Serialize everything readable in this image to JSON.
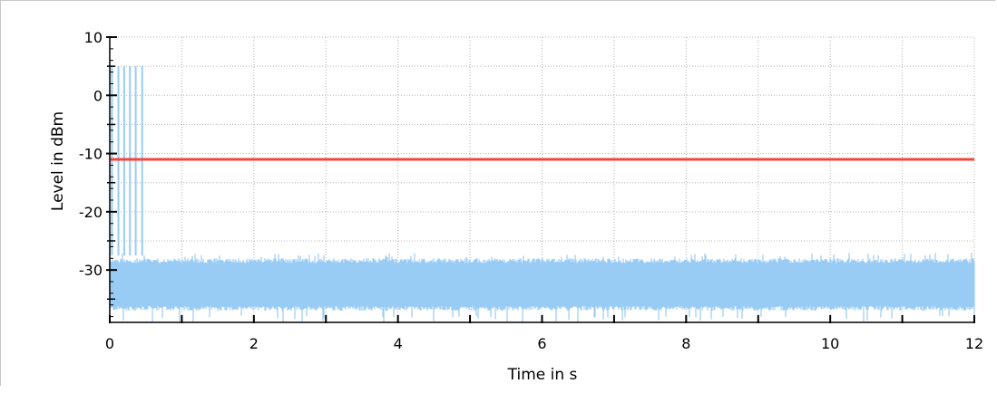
{
  "chart_data": {
    "type": "line",
    "title": "",
    "xlabel": "Time in s",
    "ylabel": "Level in dBm",
    "xlim": [
      0,
      12
    ],
    "ylim": [
      -39,
      10
    ],
    "x_ticks": [
      0,
      2,
      4,
      6,
      8,
      10,
      12
    ],
    "x_minor_ticks": [
      1,
      3,
      5,
      7,
      9,
      11
    ],
    "y_ticks": [
      10,
      0,
      -10,
      -20,
      -30
    ],
    "x_tick_labels": [
      "0",
      "2",
      "4",
      "6",
      "8",
      "10",
      "12"
    ],
    "y_tick_labels": [
      "10",
      "0",
      "-10",
      "-20",
      "-30"
    ],
    "grid": true,
    "series": [
      {
        "kind": "noise-band",
        "color": "#99ccf5",
        "x_range": [
          0,
          12
        ],
        "band_min": -37,
        "band_max": -28,
        "spike_min": -39,
        "spike_max": -27
      },
      {
        "kind": "pulses",
        "color": "#99ccf5",
        "x": [
          0.03,
          0.12,
          0.2,
          0.28,
          0.36,
          0.45
        ],
        "y_bottom": -27.5,
        "y_top": 5
      },
      {
        "kind": "threshold",
        "color": "#f0463c",
        "y": -11
      }
    ]
  }
}
